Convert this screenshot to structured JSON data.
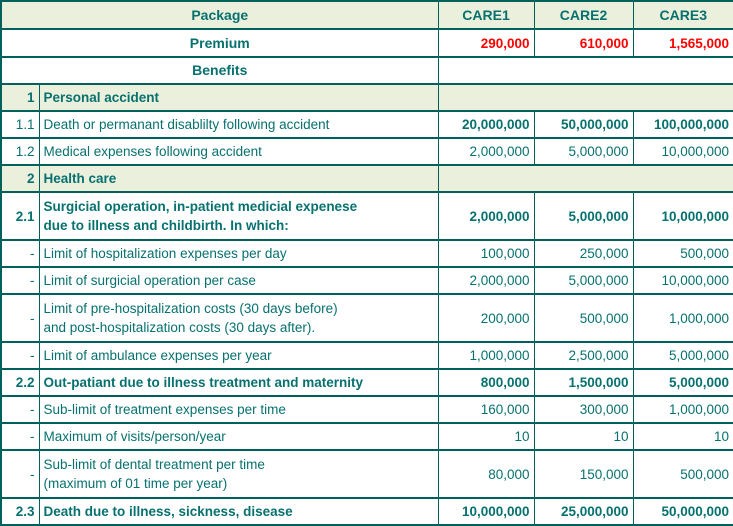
{
  "colors": {
    "text_teal": "#06716F",
    "premium_red": "#FF0000",
    "section_row_bg": "#EBF0DD",
    "border": "#00615C"
  },
  "table": {
    "header": {
      "package_label": "Package",
      "columns": [
        "CARE1",
        "CARE2",
        "CARE3"
      ]
    },
    "premium": {
      "label": "Premium",
      "values": [
        "290,000",
        "610,000",
        "1,565,000"
      ]
    },
    "benefits_label": "Benefits",
    "rows": [
      {
        "no": "1",
        "label": "Personal accident",
        "type": "section",
        "values": null
      },
      {
        "no": "1.1",
        "label": "Death or permanant disablilty following accident",
        "values": [
          "20,000,000",
          "50,000,000",
          "100,000,000"
        ]
      },
      {
        "no": "1.2",
        "label": "Medical expenses following accident",
        "values": [
          "2,000,000",
          "5,000,000",
          "10,000,000"
        ]
      },
      {
        "no": "2",
        "label": "Health care",
        "type": "section",
        "values": null
      },
      {
        "no": "2.1",
        "label": "Surgicial operation, in-patient medicial expenese\ndue to illness and childbirth. In which:",
        "values": [
          "2,000,000",
          "5,000,000",
          "10,000,000"
        ]
      },
      {
        "no": "-",
        "label": "Limit of hospitalization expenses per day",
        "values": [
          "100,000",
          "250,000",
          "500,000"
        ]
      },
      {
        "no": "-",
        "label": "Limit of surgicial operation per case",
        "values": [
          "2,000,000",
          "5,000,000",
          "10,000,000"
        ]
      },
      {
        "no": "-",
        "label": "Limit of pre-hospitalization costs (30 days before)\nand post-hospitalization costs (30 days after).",
        "values": [
          "200,000",
          "500,000",
          "1,000,000"
        ]
      },
      {
        "no": "-",
        "label": "Limit of ambulance expenses per year",
        "values": [
          "1,000,000",
          "2,500,000",
          "5,000,000"
        ]
      },
      {
        "no": "2.2",
        "label": "Out-patiant due to illness treatment and maternity",
        "values": [
          "800,000",
          "1,500,000",
          "5,000,000"
        ]
      },
      {
        "no": "-",
        "label": "Sub-limit of treatment expenses per time",
        "values": [
          "160,000",
          "300,000",
          "1,000,000"
        ]
      },
      {
        "no": "-",
        "label": "Maximum of visits/person/year",
        "values": [
          "10",
          "10",
          "10"
        ]
      },
      {
        "no": "-",
        "label": "Sub-limit of dental treatment per time\n(maximum of 01 time per year)",
        "values": [
          "80,000",
          "150,000",
          "500,000"
        ]
      },
      {
        "no": "2.3",
        "label": "Death due to illness, sickness, disease",
        "values": [
          "10,000,000",
          "25,000,000",
          "50,000,000"
        ]
      }
    ]
  }
}
